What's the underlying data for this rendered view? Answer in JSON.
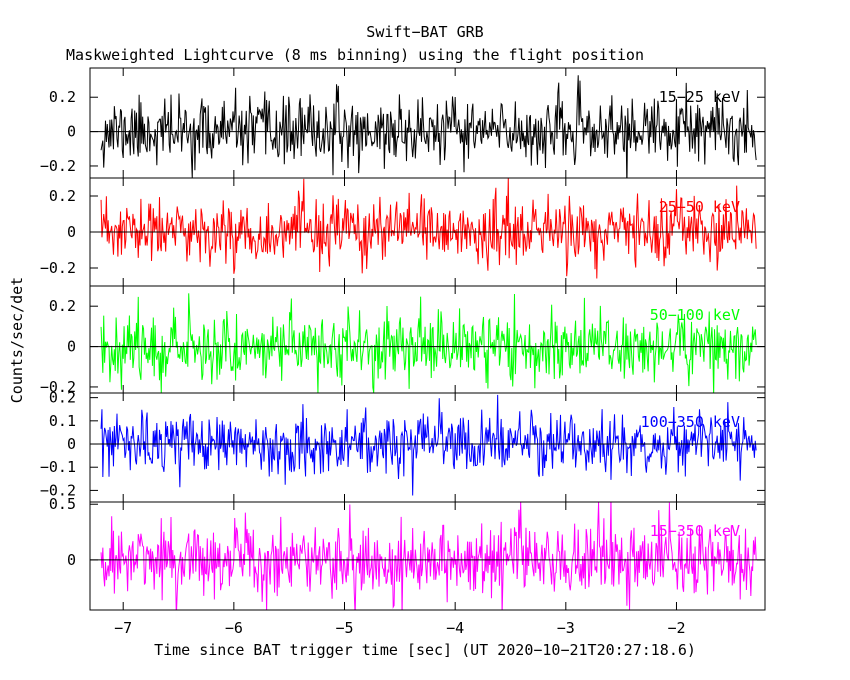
{
  "chart_data": {
    "type": "line",
    "title": "Swift−BAT GRB",
    "subtitle": "Maskweighted Lightcurve (8 ms binning) using the flight position",
    "xlabel": "Time since BAT trigger time [sec] (UT 2020−10−21T20:27:18.6)",
    "ylabel": "Counts/sec/det",
    "xlim": [
      -7.3,
      -1.2
    ],
    "x_range_data": [
      -7.2,
      -1.28
    ],
    "bin_width_sec": 0.008,
    "x_ticks": [
      {
        "v": -7,
        "label": "−7"
      },
      {
        "v": -6,
        "label": "−6"
      },
      {
        "v": -5,
        "label": "−5"
      },
      {
        "v": -4,
        "label": "−4"
      },
      {
        "v": -3,
        "label": "−3"
      },
      {
        "v": -2,
        "label": "−2"
      }
    ],
    "panels": [
      {
        "name": "15−25 keV",
        "color": "#000000",
        "ylim": [
          -0.27,
          0.37
        ],
        "noise_sigma": 0.095,
        "seed": 11,
        "y_ticks": [
          {
            "v": 0.2,
            "label": "0.2"
          },
          {
            "v": 0,
            "label": "0"
          },
          {
            "v": -0.2,
            "label": "−0.2"
          }
        ]
      },
      {
        "name": "25−50 keV",
        "color": "#ff0000",
        "ylim": [
          -0.3,
          0.3
        ],
        "noise_sigma": 0.09,
        "seed": 23,
        "y_ticks": [
          {
            "v": 0.2,
            "label": "0.2"
          },
          {
            "v": 0,
            "label": "0"
          },
          {
            "v": -0.2,
            "label": "−0.2"
          }
        ]
      },
      {
        "name": "50−100 keV",
        "color": "#00ff00",
        "ylim": [
          -0.23,
          0.3
        ],
        "noise_sigma": 0.085,
        "seed": 37,
        "y_ticks": [
          {
            "v": 0.2,
            "label": "0.2"
          },
          {
            "v": 0,
            "label": "0"
          },
          {
            "v": -0.2,
            "label": "−0.2"
          }
        ]
      },
      {
        "name": "100−350 keV",
        "color": "#0000ff",
        "ylim": [
          -0.25,
          0.22
        ],
        "noise_sigma": 0.065,
        "seed": 53,
        "y_ticks": [
          {
            "v": 0.2,
            "label": "0.2"
          },
          {
            "v": 0.1,
            "label": "0.1"
          },
          {
            "v": 0,
            "label": "0"
          },
          {
            "v": -0.1,
            "label": "−0.1"
          },
          {
            "v": -0.2,
            "label": "−0.2"
          }
        ]
      },
      {
        "name": "15−350 keV",
        "color": "#ff00ff",
        "ylim": [
          -0.45,
          0.52
        ],
        "noise_sigma": 0.17,
        "seed": 71,
        "y_ticks": [
          {
            "v": 0.5,
            "label": "0.5"
          },
          {
            "v": 0,
            "label": "0"
          }
        ]
      }
    ],
    "grid": false,
    "legend": "none"
  }
}
